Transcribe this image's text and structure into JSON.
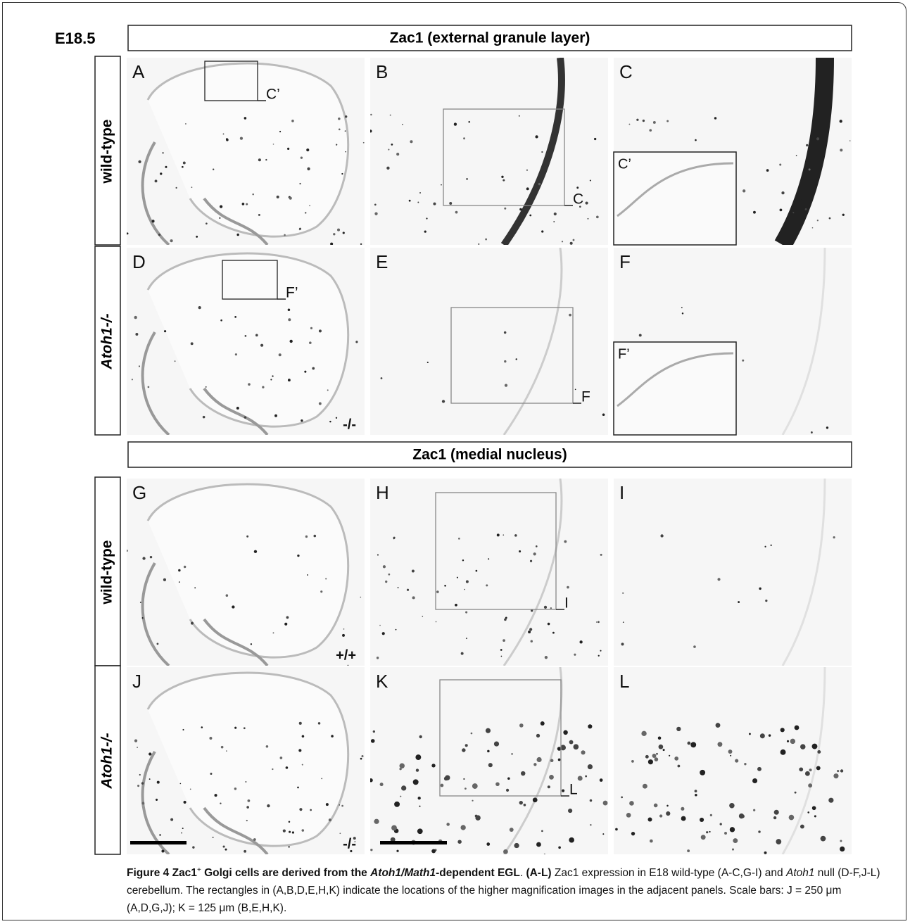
{
  "figure": {
    "stage": "E18.5",
    "sections": [
      {
        "title": "Zac1 (external granule layer)"
      },
      {
        "title": "Zac1 (medial nucleus)"
      }
    ],
    "row_labels": [
      "wild-type",
      "Atoh1-/-",
      "wild-type",
      "Atoh1-/-"
    ],
    "panels": [
      {
        "label": "A",
        "box": "C’"
      },
      {
        "label": "B",
        "box": "C"
      },
      {
        "label": "C",
        "inset": "C’"
      },
      {
        "label": "D",
        "box": "F’",
        "genotype": "-/-"
      },
      {
        "label": "E",
        "box": "F"
      },
      {
        "label": "F",
        "inset": "F’"
      },
      {
        "label": "G",
        "genotype": "+/+"
      },
      {
        "label": "H",
        "box": "I"
      },
      {
        "label": "I"
      },
      {
        "label": "J",
        "genotype": "-/-"
      },
      {
        "label": "K",
        "box": "L"
      },
      {
        "label": "L"
      }
    ]
  },
  "caption": [
    "Figure 4 Zac1",
    "+",
    " Golgi cells are derived from the ",
    "Atoh1/Math1",
    "-dependent EGL",
    ". ",
    "(A-L)",
    " Zac1 expression in E18 wild-type (A-C,G-I) and ",
    "Atoh1",
    " null (D-F,J-L) cerebellum. The rectangles in (A,B,D,E,H,K) indicate the locations of the higher magnification images in the adjacent panels. Scale bars: J = 250 μm (A,D,G,J); K = 125 μm (B,E,H,K)."
  ]
}
